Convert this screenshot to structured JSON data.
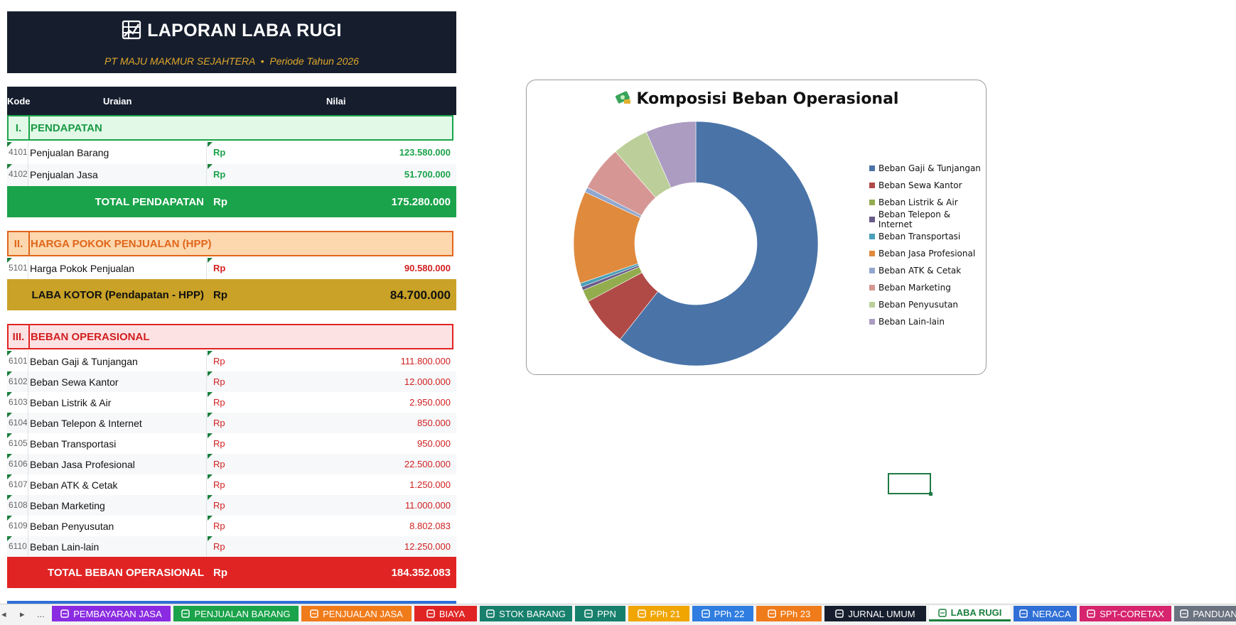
{
  "report": {
    "title": "LAPORAN LABA RUGI",
    "subtitle_company": "PT MAJU MAKMUR SEJAHTERA",
    "subtitle_sep": "•",
    "subtitle_period": "Periode Tahun 2026"
  },
  "table_header": {
    "code": "Kode",
    "description": "Uraian",
    "value": "Nilai"
  },
  "sections": {
    "revenue": {
      "num": "I.",
      "name": "PENDAPATAN"
    },
    "hpp": {
      "num": "II.",
      "name": "HARGA POKOK PENJUALAN (HPP)"
    },
    "opex": {
      "num": "III.",
      "name": "BEBAN OPERASIONAL"
    }
  },
  "revenue_rows": [
    {
      "code": "4101",
      "label": "Penjualan Barang",
      "currency": "Rp",
      "value": "123.580.000"
    },
    {
      "code": "4102",
      "label": "Penjualan Jasa",
      "currency": "Rp",
      "value": "51.700.000"
    }
  ],
  "totals": {
    "revenue": {
      "label": "TOTAL PENDAPATAN",
      "currency": "Rp",
      "value": "175.280.000"
    },
    "gross": {
      "label": "LABA KOTOR (Pendapatan - HPP)",
      "currency": "Rp",
      "value": "84.700.000"
    },
    "opex": {
      "label": "TOTAL BEBAN OPERASIONAL",
      "currency": "Rp",
      "value": "184.352.083"
    }
  },
  "hpp_rows": [
    {
      "code": "5101",
      "label": "Harga Pokok Penjualan",
      "currency": "Rp",
      "value": "90.580.000"
    }
  ],
  "opex_rows": [
    {
      "code": "6101",
      "label": "Beban Gaji & Tunjangan",
      "currency": "Rp",
      "value": "111.800.000"
    },
    {
      "code": "6102",
      "label": "Beban Sewa Kantor",
      "currency": "Rp",
      "value": "12.000.000"
    },
    {
      "code": "6103",
      "label": "Beban Listrik & Air",
      "currency": "Rp",
      "value": "2.950.000"
    },
    {
      "code": "6104",
      "label": "Beban Telepon & Internet",
      "currency": "Rp",
      "value": "850.000"
    },
    {
      "code": "6105",
      "label": "Beban Transportasi",
      "currency": "Rp",
      "value": "950.000"
    },
    {
      "code": "6106",
      "label": "Beban Jasa Profesional",
      "currency": "Rp",
      "value": "22.500.000"
    },
    {
      "code": "6107",
      "label": "Beban ATK & Cetak",
      "currency": "Rp",
      "value": "1.250.000"
    },
    {
      "code": "6108",
      "label": "Beban Marketing",
      "currency": "Rp",
      "value": "11.000.000"
    },
    {
      "code": "6109",
      "label": "Beban Penyusutan",
      "currency": "Rp",
      "value": "8.802.083"
    },
    {
      "code": "6110",
      "label": "Beban Lain-lain",
      "currency": "Rp",
      "value": "12.250.000"
    }
  ],
  "chart_data": {
    "type": "pie",
    "title": "Komposisi Beban Operasional",
    "title_icon": "money-icon",
    "donut": true,
    "legend_position": "right",
    "categories": [
      "Beban Gaji & Tunjangan",
      "Beban Sewa Kantor",
      "Beban Listrik & Air",
      "Beban Telepon & Internet",
      "Beban Transportasi",
      "Beban Jasa Profesional",
      "Beban ATK & Cetak",
      "Beban Marketing",
      "Beban Penyusutan",
      "Beban Lain-lain"
    ],
    "values": [
      111800000,
      12000000,
      2950000,
      850000,
      950000,
      22500000,
      1250000,
      11000000,
      8802083,
      12250000
    ],
    "colors": [
      "#4a74a8",
      "#b04a47",
      "#93ad4e",
      "#6a5a8a",
      "#4aa0b8",
      "#e08a3e",
      "#90a8d0",
      "#d69794",
      "#bccf9a",
      "#ac9cc1"
    ]
  },
  "colors": {
    "dark_header": "#161e2e",
    "revenue_green": "#1aa34a",
    "gross_gold": "#c9a227",
    "opex_red": "#e02424",
    "orange": "#e0661a"
  },
  "tabs": {
    "nav_prev": "◂",
    "nav_next": "▸",
    "nav_more": "...",
    "items": [
      {
        "label": "PEMBAYARAN JASA",
        "color": "#8a2be2",
        "icon": "briefcase-icon"
      },
      {
        "label": "PENJUALAN BARANG",
        "color": "#1aa34a",
        "icon": "money-bag-icon"
      },
      {
        "label": "PENJUALAN JASA",
        "color": "#f07b1a",
        "icon": "target-icon"
      },
      {
        "label": "BIAYA",
        "color": "#e02424",
        "icon": "tag-icon"
      },
      {
        "label": "STOK BARANG",
        "color": "#17806d",
        "icon": "box-icon"
      },
      {
        "label": "PPN",
        "color": "#17806d",
        "icon": "chart-icon"
      },
      {
        "label": "PPh 21",
        "color": "#f0a500",
        "icon": "people-icon"
      },
      {
        "label": "PPh 22",
        "color": "#2f7de0",
        "icon": "bar-chart-icon"
      },
      {
        "label": "PPh 23",
        "color": "#f07b1a",
        "icon": "wrench-icon"
      },
      {
        "label": "JURNAL UMUM",
        "color": "#161e2e",
        "icon": "book-icon"
      },
      {
        "label": "LABA RUGI",
        "color": "#1a7f3c",
        "icon": "chart-grid-icon",
        "active": true
      },
      {
        "label": "NERACA",
        "color": "#2f6fd6",
        "icon": "scale-icon"
      },
      {
        "label": "SPT-CORETAX",
        "color": "#d6246e",
        "icon": "clipboard-icon"
      },
      {
        "label": "PANDUAN",
        "color": "#6b7280",
        "icon": "book-open-icon"
      }
    ]
  }
}
